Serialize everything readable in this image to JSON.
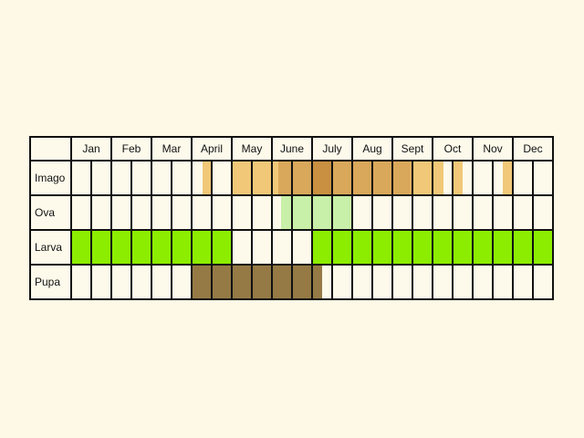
{
  "chart_data": {
    "type": "table",
    "title": "",
    "months": [
      "Jan",
      "Feb",
      "Mar",
      "April",
      "May",
      "June",
      "July",
      "Aug",
      "Sept",
      "Oct",
      "Nov",
      "Dec"
    ],
    "half_month_columns": 24,
    "rows": [
      {
        "name": "Imago",
        "segments": [
          {
            "start": 6.55,
            "end": 7.05,
            "color": "#f0c878"
          },
          {
            "start": 8.0,
            "end": 10.0,
            "color": "#f0c878"
          },
          {
            "start": 10.0,
            "end": 10.3,
            "color": "#f0c878"
          },
          {
            "start": 10.3,
            "end": 12.0,
            "color": "#d9a85a"
          },
          {
            "start": 12.0,
            "end": 13.0,
            "color": "#c89040"
          },
          {
            "start": 13.0,
            "end": 16.85,
            "color": "#d9a85a"
          },
          {
            "start": 16.85,
            "end": 17.0,
            "color": "#e0b060"
          },
          {
            "start": 17.0,
            "end": 18.55,
            "color": "#f0c878"
          },
          {
            "start": 19.05,
            "end": 19.5,
            "color": "#f0c878"
          },
          {
            "start": 21.5,
            "end": 21.95,
            "color": "#f0c878"
          }
        ]
      },
      {
        "name": "Ova",
        "segments": [
          {
            "start": 10.45,
            "end": 14.0,
            "color": "#c8f0a8"
          }
        ]
      },
      {
        "name": "Larva",
        "segments": [
          {
            "start": 0.0,
            "end": 8.0,
            "color": "#8ced00"
          },
          {
            "start": 12.0,
            "end": 24.0,
            "color": "#8ced00"
          }
        ]
      },
      {
        "name": "Pupa",
        "segments": [
          {
            "start": 6.0,
            "end": 12.5,
            "color": "#957a45"
          }
        ]
      }
    ],
    "colors": {
      "background": "#fdfaeb",
      "grid": "#111111",
      "imago_light": "#f0c878",
      "imago_mid": "#d9a85a",
      "imago_dark": "#c89040",
      "ova": "#c8f0a8",
      "larva": "#8ced00",
      "pupa": "#957a45"
    }
  }
}
